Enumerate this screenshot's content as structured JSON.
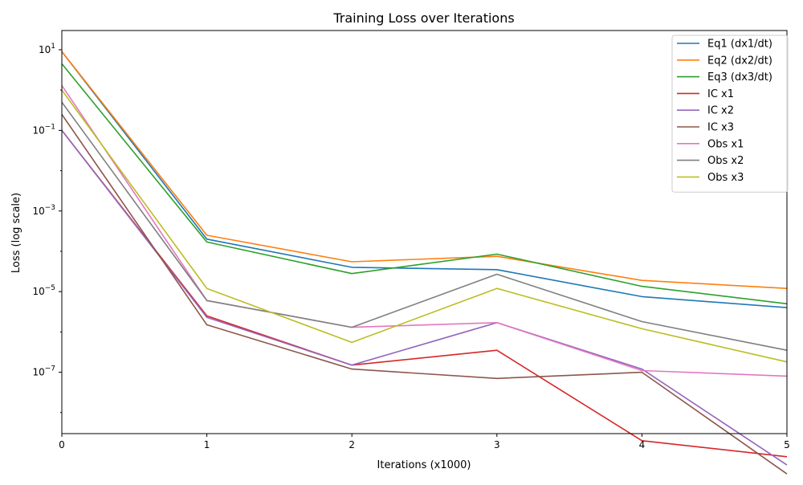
{
  "chart_data": {
    "type": "line",
    "title": "Training Loss over Iterations",
    "xlabel": "Iterations (x1000)",
    "ylabel": "Loss (log scale)",
    "yscale": "log",
    "x": [
      0,
      1,
      2,
      3,
      4,
      5
    ],
    "xlim": [
      0,
      5
    ],
    "ylim": [
      3e-09,
      30
    ],
    "xticks": [
      0,
      1,
      2,
      3,
      4,
      5
    ],
    "xtick_labels": [
      "0",
      "1",
      "2",
      "3",
      "4",
      "5"
    ],
    "yticks": [
      1e-07,
      1e-05,
      0.001,
      0.1,
      10
    ],
    "ytick_mantissa": [
      "10",
      "10",
      "10",
      "10",
      "10"
    ],
    "ytick_exponents": [
      "−7",
      "−5",
      "−3",
      "−1",
      "1"
    ],
    "grid": false,
    "legend_position": "top-right",
    "series": [
      {
        "name": "Eq1 (dx1/dt)",
        "color": "#1f77b4",
        "values": [
          9,
          0.0002,
          4e-05,
          3.5e-05,
          7.5e-06,
          4e-06
        ]
      },
      {
        "name": "Eq2 (dx2/dt)",
        "color": "#ff7f0e",
        "values": [
          9,
          0.00025,
          5.5e-05,
          7.5e-05,
          1.9e-05,
          1.2e-05
        ]
      },
      {
        "name": "Eq3 (dx3/dt)",
        "color": "#2ca02c",
        "values": [
          4.5,
          0.00017,
          2.8e-05,
          8.5e-05,
          1.35e-05,
          5e-06
        ]
      },
      {
        "name": "IC x1",
        "color": "#d62728",
        "values": [
          0.1,
          2.5e-06,
          1.5e-07,
          3.5e-07,
          2e-09,
          8e-10
        ]
      },
      {
        "name": "IC x2",
        "color": "#9467bd",
        "values": [
          0.1,
          2.3e-06,
          1.5e-07,
          1.7e-06,
          1.2e-07,
          5e-10
        ]
      },
      {
        "name": "IC x3",
        "color": "#8c564b",
        "values": [
          0.25,
          1.5e-06,
          1.2e-07,
          7e-08,
          1e-07,
          3e-10
        ]
      },
      {
        "name": "Obs x1",
        "color": "#e377c2",
        "values": [
          1.3,
          6e-06,
          1.3e-06,
          1.7e-06,
          1.1e-07,
          8e-08
        ]
      },
      {
        "name": "Obs x2",
        "color": "#7f7f7f",
        "values": [
          0.5,
          6e-06,
          1.3e-06,
          2.7e-05,
          1.8e-06,
          3.5e-07
        ]
      },
      {
        "name": "Obs x3",
        "color": "#bcbd22",
        "values": [
          1.0,
          1.2e-05,
          5.5e-07,
          1.2e-05,
          1.2e-06,
          1.8e-07
        ]
      }
    ]
  }
}
